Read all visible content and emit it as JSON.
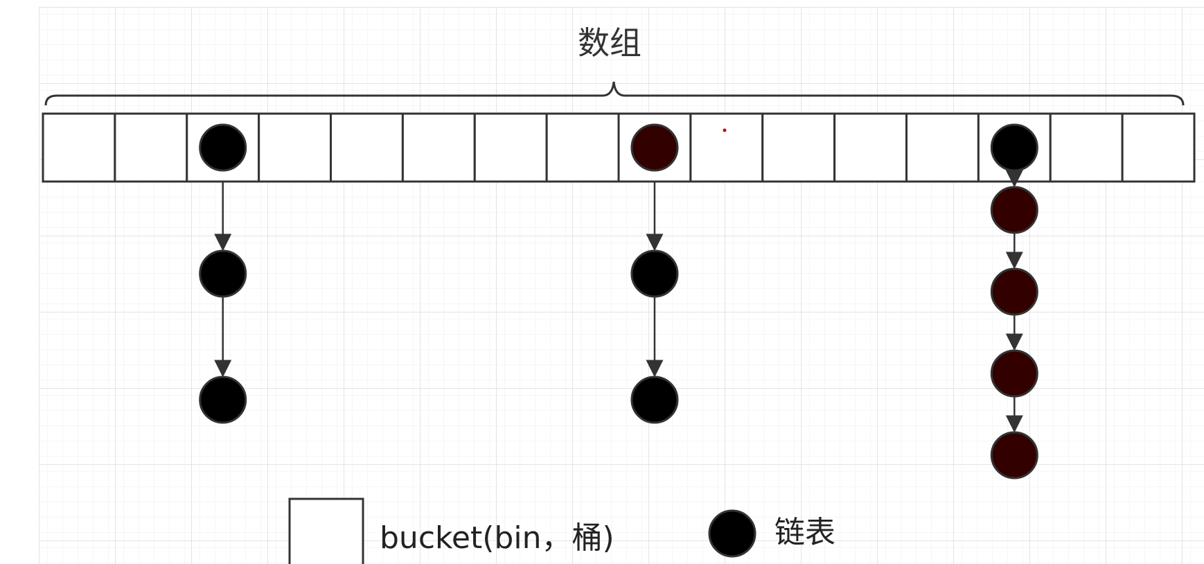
{
  "diagram": {
    "title": "数组",
    "array": {
      "slot_count": 16,
      "occupied": [
        {
          "slot": 2,
          "color": "#000000",
          "chain": [
            "#000000",
            "#000000"
          ]
        },
        {
          "slot": 8,
          "color": "#330000",
          "chain": [
            "#000000",
            "#000000"
          ]
        },
        {
          "slot": 13,
          "color": "#000000",
          "chain": [
            "#330000",
            "#330000",
            "#330000",
            "#330000"
          ]
        }
      ]
    },
    "legend": {
      "bucket_label": "bucket(bin，桶)",
      "node_label": "链表"
    }
  },
  "colors": {
    "stroke": "#333333",
    "grid": "#ececec",
    "grid_major": "#dedede",
    "node_black": "#000000",
    "node_dark_red": "#330000",
    "background": "#ffffff"
  }
}
